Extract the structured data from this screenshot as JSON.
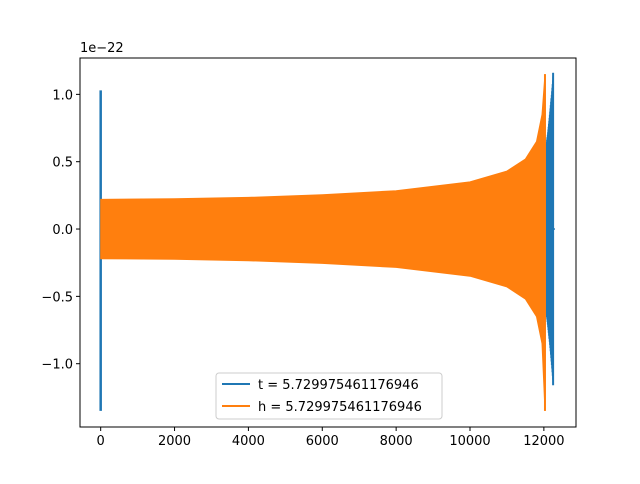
{
  "chart_data": {
    "type": "line",
    "offset_label": "1e−22",
    "xlim": [
      -560,
      12870
    ],
    "ylim": [
      -1.47,
      1.27
    ],
    "x_ticks": [
      0,
      2000,
      4000,
      6000,
      8000,
      10000,
      12000
    ],
    "x_tick_labels": [
      "0",
      "2000",
      "4000",
      "6000",
      "8000",
      "10000",
      "12000"
    ],
    "y_ticks": [
      1.0,
      0.5,
      0.0,
      -0.5,
      -1.0
    ],
    "y_tick_labels": [
      "1.0",
      "0.5",
      "0.0",
      "−0.5",
      "−1.0"
    ],
    "grid": false,
    "legend_position": "lower center",
    "series": [
      {
        "name": "t = 5.729975461176946",
        "color": "#1f77b4",
        "envelope": [
          {
            "x": 0,
            "lo": -1.35,
            "hi": 1.03
          },
          {
            "x": 12000,
            "lo": -0.5,
            "hi": 0.55
          },
          {
            "x": 12150,
            "lo": -0.8,
            "hi": 0.85
          },
          {
            "x": 12250,
            "lo": -1.16,
            "hi": 1.16
          },
          {
            "x": 12300,
            "lo": 0,
            "hi": 0
          }
        ]
      },
      {
        "name": "h = 5.729975461176946",
        "color": "#ff7f0e",
        "envelope": [
          {
            "x": 0,
            "lo": -0.22,
            "hi": 0.22
          },
          {
            "x": 2000,
            "lo": -0.225,
            "hi": 0.225
          },
          {
            "x": 4000,
            "lo": -0.235,
            "hi": 0.235
          },
          {
            "x": 6000,
            "lo": -0.255,
            "hi": 0.255
          },
          {
            "x": 8000,
            "lo": -0.285,
            "hi": 0.285
          },
          {
            "x": 10000,
            "lo": -0.35,
            "hi": 0.35
          },
          {
            "x": 11000,
            "lo": -0.43,
            "hi": 0.43
          },
          {
            "x": 11500,
            "lo": -0.52,
            "hi": 0.52
          },
          {
            "x": 11800,
            "lo": -0.65,
            "hi": 0.65
          },
          {
            "x": 11950,
            "lo": -0.85,
            "hi": 0.85
          },
          {
            "x": 12030,
            "lo": -1.35,
            "hi": 1.15
          }
        ]
      }
    ]
  }
}
